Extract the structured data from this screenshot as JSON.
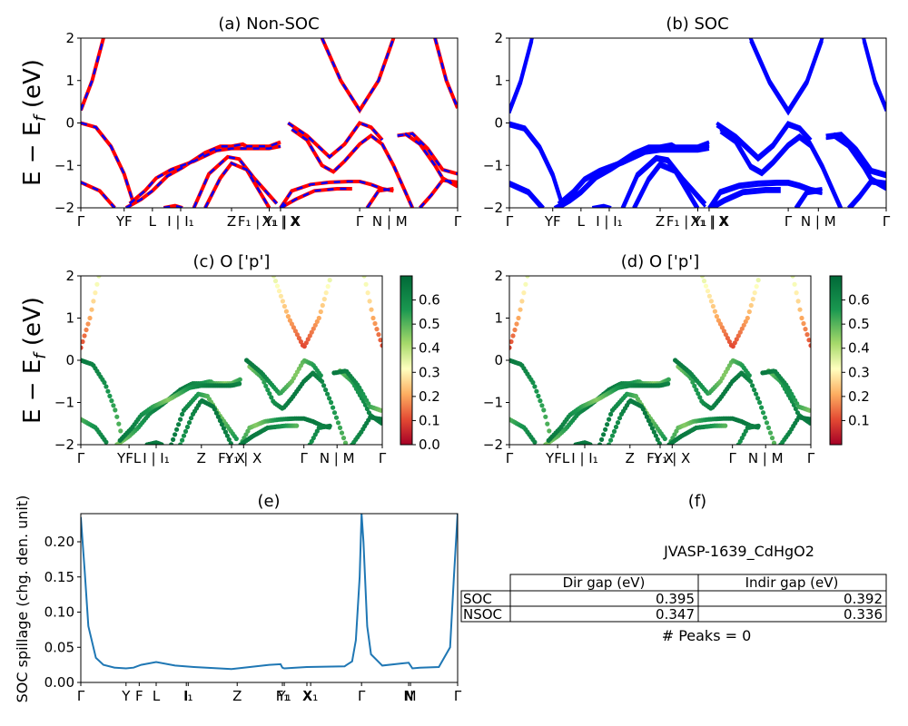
{
  "figure_id": "JVASP-1639_CdHgO2",
  "colorbar_ticks_c": [
    "0.0",
    "0.1",
    "0.2",
    "0.3",
    "0.4",
    "0.5",
    "0.6"
  ],
  "colorbar_ticks_d": [
    "0.1",
    "0.2",
    "0.3",
    "0.4",
    "0.5",
    "0.6"
  ],
  "chart_data": [
    {
      "panel": "a",
      "type": "line",
      "title": "(a) Non-SOC",
      "ylabel": "E − E_f (eV)",
      "ylim": [
        -2,
        2
      ],
      "yticks": [
        "2",
        "1",
        "0",
        "−1",
        "−2"
      ],
      "kpoint_labels": [
        "Γ",
        "YF",
        "L",
        "I | I₁",
        "Z",
        "F₁ | Y₁ | X",
        "X₁ | X",
        "Γ",
        "N | M",
        "Γ"
      ],
      "kpoint_positions": [
        0,
        0.115,
        0.19,
        0.265,
        0.4,
        0.5,
        0.53,
        0.74,
        0.82,
        1.0
      ],
      "series": [
        {
          "color": "#ff0000",
          "bands": [
            [
              [
                0,
                0.3
              ],
              [
                0.03,
                1.0
              ],
              [
                0.06,
                2.0
              ]
            ],
            [
              [
                0,
                0.0
              ],
              [
                0.04,
                -0.1
              ],
              [
                0.08,
                -0.55
              ],
              [
                0.115,
                -1.2
              ],
              [
                0.14,
                -1.9
              ]
            ],
            [
              [
                0,
                -1.4
              ],
              [
                0.05,
                -1.6
              ],
              [
                0.09,
                -2.0
              ]
            ],
            [
              [
                0.12,
                -2.0
              ],
              [
                0.16,
                -1.8
              ],
              [
                0.19,
                -1.6
              ],
              [
                0.23,
                -1.25
              ],
              [
                0.27,
                -1.05
              ],
              [
                0.33,
                -0.7
              ],
              [
                0.37,
                -0.55
              ],
              [
                0.4,
                -0.55
              ],
              [
                0.43,
                -0.5
              ],
              [
                0.44,
                -0.55
              ],
              [
                0.5,
                -0.55
              ],
              [
                0.53,
                -0.45
              ]
            ],
            [
              [
                0.13,
                -1.9
              ],
              [
                0.17,
                -1.6
              ],
              [
                0.2,
                -1.3
              ],
              [
                0.24,
                -1.1
              ],
              [
                0.3,
                -0.9
              ],
              [
                0.36,
                -0.65
              ],
              [
                0.4,
                -0.6
              ],
              [
                0.44,
                -0.6
              ],
              [
                0.5,
                -0.6
              ],
              [
                0.53,
                -0.55
              ]
            ],
            [
              [
                0.3,
                -2.0
              ],
              [
                0.34,
                -1.2
              ],
              [
                0.39,
                -0.8
              ],
              [
                0.42,
                -0.85
              ],
              [
                0.46,
                -1.3
              ],
              [
                0.5,
                -1.7
              ],
              [
                0.52,
                -1.9
              ]
            ],
            [
              [
                0.33,
                -2.0
              ],
              [
                0.37,
                -1.3
              ],
              [
                0.4,
                -0.95
              ],
              [
                0.44,
                -1.1
              ],
              [
                0.48,
                -1.7
              ],
              [
                0.5,
                -2.0
              ]
            ],
            [
              [
                0.22,
                -2.0
              ],
              [
                0.25,
                -1.95
              ],
              [
                0.27,
                -2.0
              ]
            ],
            [
              [
                0.53,
                -2.0
              ],
              [
                0.56,
                -1.6
              ],
              [
                0.61,
                -1.45
              ],
              [
                0.66,
                -1.4
              ],
              [
                0.71,
                -1.38
              ],
              [
                0.74,
                -1.38
              ],
              [
                0.77,
                -1.45
              ],
              [
                0.8,
                -1.55
              ],
              [
                0.83,
                -1.6
              ]
            ],
            [
              [
                0.53,
                -2.0
              ],
              [
                0.57,
                -1.8
              ],
              [
                0.62,
                -1.6
              ],
              [
                0.68,
                -1.55
              ],
              [
                0.72,
                -1.55
              ]
            ],
            [
              [
                0.56,
                -0.15
              ],
              [
                0.6,
                -0.4
              ],
              [
                0.64,
                -1.0
              ],
              [
                0.67,
                -1.15
              ],
              [
                0.7,
                -0.9
              ],
              [
                0.74,
                -0.5
              ],
              [
                0.77,
                -0.3
              ],
              [
                0.8,
                -0.5
              ],
              [
                0.83,
                -1.0
              ],
              [
                0.86,
                -1.6
              ],
              [
                0.88,
                -2.0
              ]
            ],
            [
              [
                0.55,
                0.0
              ],
              [
                0.6,
                -0.3
              ],
              [
                0.66,
                -0.8
              ],
              [
                0.7,
                -0.5
              ],
              [
                0.74,
                0.0
              ],
              [
                0.77,
                -0.1
              ],
              [
                0.8,
                -0.4
              ]
            ],
            [
              [
                0.64,
                2.0
              ],
              [
                0.69,
                1.0
              ],
              [
                0.74,
                0.3
              ],
              [
                0.79,
                1.0
              ],
              [
                0.83,
                2.0
              ]
            ],
            [
              [
                0.76,
                -2.0
              ],
              [
                0.79,
                -1.6
              ],
              [
                0.83,
                -1.55
              ]
            ],
            [
              [
                0.86,
                -0.25
              ],
              [
                0.9,
                -0.5
              ],
              [
                0.94,
                -1.0
              ],
              [
                0.96,
                -1.3
              ],
              [
                1.0,
                -1.5
              ]
            ],
            [
              [
                0.84,
                -0.3
              ],
              [
                0.88,
                -0.25
              ],
              [
                0.92,
                -0.6
              ],
              [
                0.96,
                -1.1
              ],
              [
                1.0,
                -1.2
              ]
            ],
            [
              [
                0.9,
                -2.0
              ],
              [
                0.93,
                -1.7
              ],
              [
                0.96,
                -1.35
              ],
              [
                1.0,
                -1.4
              ]
            ],
            [
              [
                0.94,
                2.0
              ],
              [
                0.97,
                1.0
              ],
              [
                1.0,
                0.35
              ]
            ]
          ]
        },
        {
          "color": "#0000ff",
          "style": "dashed",
          "bands": "same"
        }
      ]
    },
    {
      "panel": "b",
      "type": "line",
      "title": "(b) SOC",
      "ylim": [
        -2,
        2
      ],
      "yticks": [
        "2",
        "1",
        "0",
        "−1",
        "−2"
      ],
      "kpoint_labels": [
        "Γ",
        "YF",
        "L",
        "I | I₁",
        "Z",
        "F₁ | Y₁ | X",
        "X₁ | X",
        "Γ",
        "N | M",
        "Γ"
      ],
      "kpoint_positions": [
        0,
        0.115,
        0.19,
        0.265,
        0.4,
        0.5,
        0.53,
        0.74,
        0.82,
        1.0
      ],
      "series": [
        {
          "color": "#0000ff",
          "bands": "same_as_a"
        }
      ]
    },
    {
      "panel": "c",
      "type": "scatter",
      "title": "(c)  O ['p']",
      "ylabel": "E − E_f (eV)",
      "ylim": [
        -2,
        2
      ],
      "colorbar": {
        "min": 0.0,
        "max": 0.7,
        "cmap": "RdYlGn"
      },
      "kpoint_labels": [
        "Γ",
        "YFL",
        "I | I₁",
        "Z",
        "F₁ X",
        "Y₁ | X",
        "Γ",
        "N | M",
        "Γ"
      ],
      "kpoint_positions": [
        0,
        0.16,
        0.25,
        0.4,
        0.5,
        0.54,
        0.74,
        0.85,
        1.0
      ],
      "band_weights": {
        "valence": 0.55,
        "conduction": 0.15
      }
    },
    {
      "panel": "d",
      "type": "scatter",
      "title": "(d) O ['p']",
      "ylim": [
        -2,
        2
      ],
      "colorbar": {
        "min": 0.0,
        "max": 0.7,
        "cmap": "RdYlGn"
      },
      "kpoint_labels": [
        "Γ",
        "YFL",
        "I | I₁",
        "Z",
        "F₁ X",
        "Y₁ | X",
        "Γ",
        "N | M",
        "Γ"
      ],
      "kpoint_positions": [
        0,
        0.16,
        0.25,
        0.4,
        0.5,
        0.54,
        0.74,
        0.85,
        1.0
      ],
      "band_weights": {
        "valence": 0.55,
        "conduction": 0.15
      }
    },
    {
      "panel": "e",
      "type": "line",
      "title": "(e)",
      "ylabel": "SOC spillage (chg. den. unit)",
      "ylim": [
        0,
        0.24
      ],
      "yticks": [
        "0.00",
        "0.05",
        "0.10",
        "0.15",
        "0.20"
      ],
      "kpoint_labels": [
        "Γ",
        "Y",
        "F",
        "L",
        "I",
        "I₁",
        "Z",
        "F₁",
        "Y₁",
        "X",
        "X₁",
        "Γ",
        "N",
        "M",
        "Γ"
      ],
      "kpoint_positions": [
        0,
        0.12,
        0.155,
        0.2,
        0.28,
        0.285,
        0.415,
        0.535,
        0.54,
        0.6,
        0.61,
        0.745,
        0.87,
        0.875,
        1.0
      ],
      "series": [
        {
          "color": "#1f77b4",
          "x": [
            0,
            0.01,
            0.02,
            0.04,
            0.06,
            0.09,
            0.12,
            0.14,
            0.16,
            0.2,
            0.25,
            0.3,
            0.4,
            0.5,
            0.53,
            0.535,
            0.54,
            0.6,
            0.7,
            0.72,
            0.73,
            0.74,
            0.745,
            0.75,
            0.76,
            0.77,
            0.8,
            0.85,
            0.87,
            0.88,
            0.9,
            0.95,
            0.98,
            0.99,
            1.0
          ],
          "y": [
            0.235,
            0.16,
            0.08,
            0.035,
            0.025,
            0.021,
            0.02,
            0.021,
            0.025,
            0.029,
            0.024,
            0.022,
            0.019,
            0.025,
            0.026,
            0.021,
            0.02,
            0.022,
            0.023,
            0.03,
            0.06,
            0.15,
            0.24,
            0.2,
            0.08,
            0.04,
            0.024,
            0.027,
            0.028,
            0.02,
            0.021,
            0.022,
            0.05,
            0.15,
            0.24
          ]
        }
      ]
    }
  ],
  "table": {
    "title": "(f)",
    "caption": "JVASP-1639_CdHgO2",
    "columns": [
      "Dir gap (eV)",
      "Indir gap (eV)"
    ],
    "rows": [
      {
        "label": "SOC",
        "dir": "0.395",
        "indir": "0.392"
      },
      {
        "label": "NSOC",
        "dir": "0.347",
        "indir": "0.336"
      }
    ],
    "footer": "# Peaks = 0"
  }
}
